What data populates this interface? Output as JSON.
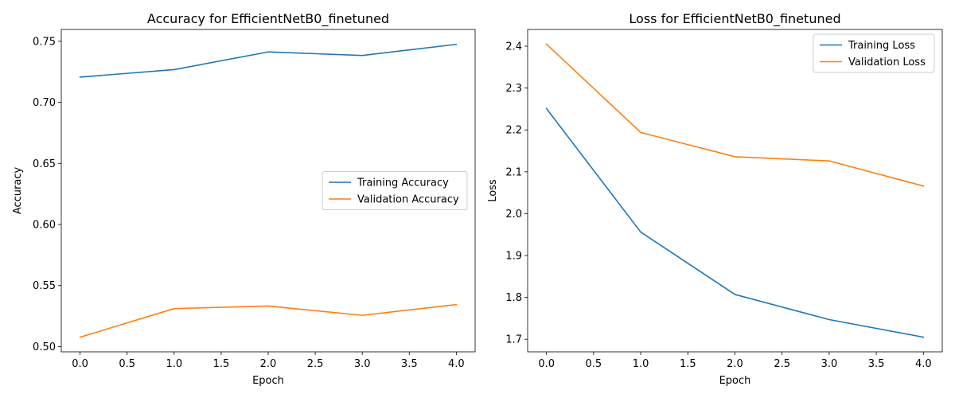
{
  "chart_data": [
    {
      "type": "line",
      "title": "Accuracy for EfficientNetB0_finetuned",
      "xlabel": "Epoch",
      "ylabel": "Accuracy",
      "x": [
        0,
        1,
        2,
        3,
        4
      ],
      "xlim": [
        -0.2,
        4.2
      ],
      "ylim": [
        0.4957,
        0.7597
      ],
      "xticks": [
        "0.0",
        "0.5",
        "1.0",
        "1.5",
        "2.0",
        "2.5",
        "3.0",
        "3.5",
        "4.0"
      ],
      "yticks": [
        "0.50",
        "0.55",
        "0.60",
        "0.65",
        "0.70",
        "0.75"
      ],
      "grid": false,
      "legend": "center-right",
      "series": [
        {
          "name": "Training Accuracy",
          "color": "#1f77b4",
          "values": [
            0.7207,
            0.7268,
            0.7413,
            0.7384,
            0.7475
          ]
        },
        {
          "name": "Validation Accuracy",
          "color": "#ff7f0e",
          "values": [
            0.5077,
            0.5311,
            0.5332,
            0.5256,
            0.5344
          ]
        }
      ]
    },
    {
      "type": "line",
      "title": "Loss for EfficientNetB0_finetuned",
      "xlabel": "Epoch",
      "ylabel": "Loss",
      "x": [
        0,
        1,
        2,
        3,
        4
      ],
      "xlim": [
        -0.2,
        4.2
      ],
      "ylim": [
        1.67,
        2.44
      ],
      "xticks": [
        "0.0",
        "0.5",
        "1.0",
        "1.5",
        "2.0",
        "2.5",
        "3.0",
        "3.5",
        "4.0"
      ],
      "yticks": [
        "1.7",
        "1.8",
        "1.9",
        "2.0",
        "2.1",
        "2.2",
        "2.3",
        "2.4"
      ],
      "grid": false,
      "legend": "top-right",
      "series": [
        {
          "name": "Training Loss",
          "color": "#1f77b4",
          "values": [
            2.251,
            1.956,
            1.807,
            1.747,
            1.705
          ]
        },
        {
          "name": "Validation Loss",
          "color": "#ff7f0e",
          "values": [
            2.405,
            2.194,
            2.136,
            2.126,
            2.066
          ]
        }
      ]
    }
  ]
}
